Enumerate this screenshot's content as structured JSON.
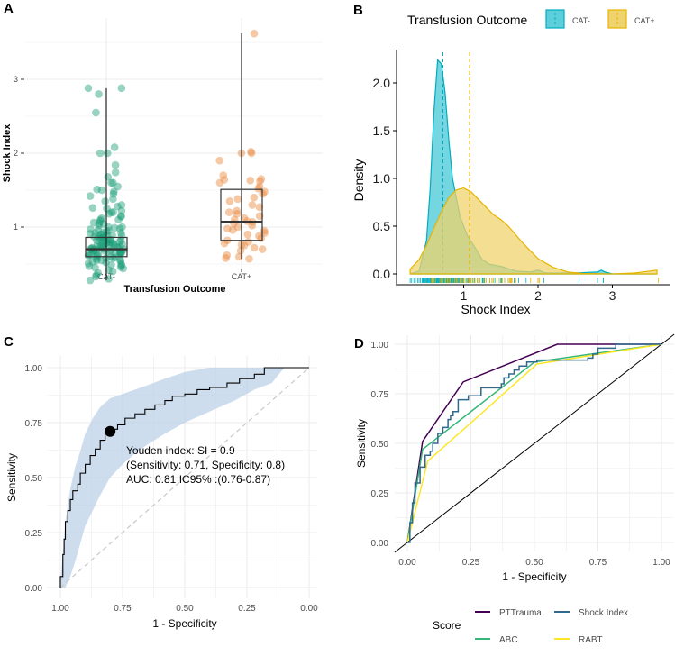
{
  "panel_labels": [
    "A",
    "B",
    "C",
    "D"
  ],
  "chart_data": [
    {
      "panel": "A",
      "type": "box_jitter",
      "xlabel": "Transfusion Outcome",
      "ylabel": "Shock Index",
      "categories": [
        "CAT-",
        "CAT+"
      ],
      "yticks": [
        1,
        2,
        3
      ],
      "ylim": [
        0.2,
        3.8
      ],
      "grid": true,
      "colors": {
        "CAT-": "#1b9e77",
        "CAT+": "#e8843a"
      },
      "boxes": [
        {
          "category": "CAT-",
          "min": 0.28,
          "q1": 0.6,
          "median": 0.7,
          "q3": 0.86,
          "max": 2.88
        },
        {
          "category": "CAT+",
          "min": 0.57,
          "q1": 0.82,
          "median": 1.07,
          "q3": 1.51,
          "max": 3.62
        }
      ],
      "points": {
        "CAT-": [
          2.88,
          2.88,
          2.8,
          2.55,
          2.08,
          2.0,
          2.0,
          1.84,
          1.74,
          1.68,
          1.6,
          1.6,
          1.55,
          1.51,
          1.5,
          1.48,
          1.45,
          1.42,
          1.38,
          1.35,
          1.3,
          1.28,
          1.26,
          1.25,
          1.22,
          1.2,
          1.2,
          1.18,
          1.15,
          1.14,
          1.12,
          1.1,
          1.1,
          1.08,
          1.06,
          1.05,
          1.04,
          1.02,
          1.0,
          1.0,
          0.99,
          0.98,
          0.97,
          0.96,
          0.95,
          0.94,
          0.93,
          0.92,
          0.92,
          0.91,
          0.9,
          0.9,
          0.89,
          0.88,
          0.88,
          0.87,
          0.86,
          0.86,
          0.85,
          0.85,
          0.84,
          0.83,
          0.83,
          0.82,
          0.82,
          0.81,
          0.8,
          0.8,
          0.79,
          0.79,
          0.78,
          0.78,
          0.77,
          0.77,
          0.76,
          0.76,
          0.75,
          0.75,
          0.74,
          0.74,
          0.73,
          0.73,
          0.72,
          0.72,
          0.71,
          0.71,
          0.7,
          0.7,
          0.7,
          0.69,
          0.69,
          0.68,
          0.68,
          0.67,
          0.67,
          0.66,
          0.66,
          0.65,
          0.65,
          0.64,
          0.64,
          0.63,
          0.63,
          0.62,
          0.62,
          0.61,
          0.6,
          0.6,
          0.59,
          0.58,
          0.58,
          0.57,
          0.56,
          0.55,
          0.55,
          0.54,
          0.53,
          0.52,
          0.51,
          0.5,
          0.49,
          0.48,
          0.47,
          0.46,
          0.45,
          0.44,
          0.42,
          0.4,
          0.38,
          0.35,
          0.33,
          0.3,
          0.28
        ],
        "CAT+": [
          3.62,
          2.02,
          2.0,
          2.0,
          1.9,
          1.7,
          1.65,
          1.64,
          1.63,
          1.62,
          1.6,
          1.55,
          1.52,
          1.48,
          1.45,
          1.4,
          1.38,
          1.35,
          1.3,
          1.27,
          1.22,
          1.2,
          1.18,
          1.15,
          1.12,
          1.1,
          1.08,
          1.07,
          1.05,
          1.02,
          1.0,
          0.98,
          0.96,
          0.95,
          0.92,
          0.9,
          0.88,
          0.85,
          0.82,
          0.8,
          0.78,
          0.76,
          0.75,
          0.72,
          0.7,
          0.68,
          0.62,
          0.6,
          0.58,
          0.57
        ]
      }
    },
    {
      "panel": "B",
      "type": "area",
      "xlabel": "Shock Index",
      "ylabel": "Density",
      "legend_title": "Transfusion Outcome",
      "legend_position": "top",
      "xticks": [
        1,
        2,
        3
      ],
      "yticks": [
        "0.0",
        "0.5",
        "1.0",
        "1.5",
        "2.0"
      ],
      "xlim": [
        0.28,
        3.6
      ],
      "ylim": [
        0,
        2.3
      ],
      "series": [
        {
          "name": "CAT-",
          "color": "#00adbf",
          "fill": "#5ccfda",
          "mean": 0.72,
          "x": [
            0.28,
            0.4,
            0.5,
            0.55,
            0.6,
            0.65,
            0.7,
            0.75,
            0.8,
            0.85,
            0.95,
            1.05,
            1.15,
            1.25,
            1.35,
            1.5,
            1.7,
            1.9,
            2.0,
            2.1,
            2.5,
            2.8,
            2.85,
            2.9,
            3.0,
            3.6
          ],
          "y": [
            0,
            0.03,
            0.35,
            0.9,
            1.7,
            2.24,
            2.2,
            1.9,
            1.4,
            1.0,
            0.6,
            0.4,
            0.28,
            0.15,
            0.1,
            0.08,
            0.03,
            0.02,
            0.04,
            0.01,
            0.01,
            0.02,
            0.04,
            0.02,
            0,
            0
          ]
        },
        {
          "name": "CAT+",
          "color": "#e6b400",
          "fill": "#efd36c",
          "mean": 1.08,
          "x": [
            0.28,
            0.4,
            0.5,
            0.6,
            0.7,
            0.8,
            0.9,
            1.0,
            1.1,
            1.2,
            1.4,
            1.5,
            1.6,
            1.8,
            2.0,
            2.2,
            2.4,
            2.6,
            3.0,
            3.3,
            3.6
          ],
          "y": [
            0.05,
            0.15,
            0.3,
            0.48,
            0.65,
            0.8,
            0.88,
            0.9,
            0.86,
            0.78,
            0.62,
            0.57,
            0.5,
            0.32,
            0.16,
            0.07,
            0.02,
            0.005,
            0,
            0.01,
            0.04
          ]
        }
      ]
    },
    {
      "panel": "C",
      "type": "line",
      "xlabel": "1 - Specificity",
      "ylabel": "Sensitivity",
      "xreversed": true,
      "xticks": [
        "1.00",
        "0.75",
        "0.50",
        "0.25",
        "0.00"
      ],
      "yticks": [
        "0.00",
        "0.25",
        "0.50",
        "0.75",
        "1.00"
      ],
      "xlim": [
        1,
        0
      ],
      "ylim": [
        0,
        1
      ],
      "grid": true,
      "roc": {
        "specificity": [
          1,
          0.99,
          0.985,
          0.98,
          0.97,
          0.96,
          0.95,
          0.93,
          0.92,
          0.9,
          0.88,
          0.86,
          0.84,
          0.82,
          0.8,
          0.77,
          0.74,
          0.7,
          0.66,
          0.62,
          0.58,
          0.55,
          0.5,
          0.45,
          0.4,
          0.33,
          0.28,
          0.22,
          0.18,
          0.15,
          0.1,
          0
        ],
        "sensitivity": [
          0,
          0.05,
          0.15,
          0.22,
          0.3,
          0.35,
          0.4,
          0.44,
          0.47,
          0.52,
          0.56,
          0.6,
          0.63,
          0.67,
          0.71,
          0.72,
          0.74,
          0.77,
          0.79,
          0.81,
          0.83,
          0.85,
          0.87,
          0.88,
          0.9,
          0.91,
          0.93,
          0.95,
          0.97,
          1.0,
          1.0,
          1.0
        ]
      },
      "ci_lower": [
        0,
        0.0,
        0.05,
        0.12,
        0.2,
        0.28,
        0.35,
        0.42,
        0.5,
        0.56,
        0.61,
        0.65,
        0.7,
        0.75,
        0.8,
        0.85,
        0.9,
        0.93,
        1.0
      ],
      "ci_upper": [
        0.02,
        0.3,
        0.45,
        0.55,
        0.62,
        0.7,
        0.77,
        0.82,
        0.86,
        0.88,
        0.9,
        0.92,
        0.95,
        0.98,
        1.0,
        1.0,
        1.0,
        1.0,
        1.0
      ],
      "ci_specificity": [
        1,
        0.98,
        0.96,
        0.94,
        0.92,
        0.9,
        0.87,
        0.84,
        0.8,
        0.75,
        0.7,
        0.65,
        0.58,
        0.5,
        0.4,
        0.3,
        0.22,
        0.15,
        0.1
      ],
      "ci_color": "#b9cfe6",
      "youden": {
        "specificity": 0.8,
        "sensitivity": 0.71
      },
      "annotation": [
        "Youden index: SI = 0.9",
        "(Sensitivity: 0.71, Specificity: 0.8)",
        "AUC: 0.81 IC95% :(0.76-0.87)"
      ]
    },
    {
      "panel": "D",
      "type": "line",
      "xlabel": "1 - Specificity",
      "ylabel": "Sensitivity",
      "legend_title": "Score",
      "legend_position": "bottom",
      "xticks": [
        "0.00",
        "0.25",
        "0.50",
        "0.75",
        "1.00"
      ],
      "yticks": [
        "0.00",
        "0.25",
        "0.50",
        "0.75",
        "1.00"
      ],
      "xlim": [
        0,
        1
      ],
      "ylim": [
        0,
        1
      ],
      "grid": true,
      "series": [
        {
          "name": "PTTrauma",
          "color": "#440154",
          "x": [
            0,
            0.06,
            0.22,
            0.59,
            0.82,
            1
          ],
          "y": [
            0,
            0.51,
            0.81,
            1,
            1,
            1
          ]
        },
        {
          "name": "Shock Index",
          "color": "#31688e",
          "step": true,
          "x": [
            0,
            0.01,
            0.02,
            0.03,
            0.05,
            0.07,
            0.09,
            0.1,
            0.12,
            0.14,
            0.16,
            0.17,
            0.18,
            0.2,
            0.24,
            0.29,
            0.37,
            0.38,
            0.4,
            0.42,
            0.44,
            0.47,
            0.51,
            0.71,
            0.73,
            0.75,
            0.82,
            1
          ],
          "y": [
            0,
            0.1,
            0.2,
            0.3,
            0.38,
            0.44,
            0.46,
            0.5,
            0.55,
            0.58,
            0.62,
            0.64,
            0.66,
            0.72,
            0.74,
            0.78,
            0.8,
            0.83,
            0.85,
            0.87,
            0.89,
            0.91,
            0.92,
            0.93,
            0.95,
            0.98,
            1,
            1
          ]
        },
        {
          "name": "ABC",
          "color": "#35b779",
          "x": [
            0,
            0.06,
            0.5,
            1
          ],
          "y": [
            0,
            0.47,
            0.91,
            1
          ]
        },
        {
          "name": "RABT",
          "color": "#fde725",
          "x": [
            0,
            0.08,
            0.51,
            1
          ],
          "y": [
            0,
            0.41,
            0.9,
            1
          ]
        }
      ]
    }
  ]
}
